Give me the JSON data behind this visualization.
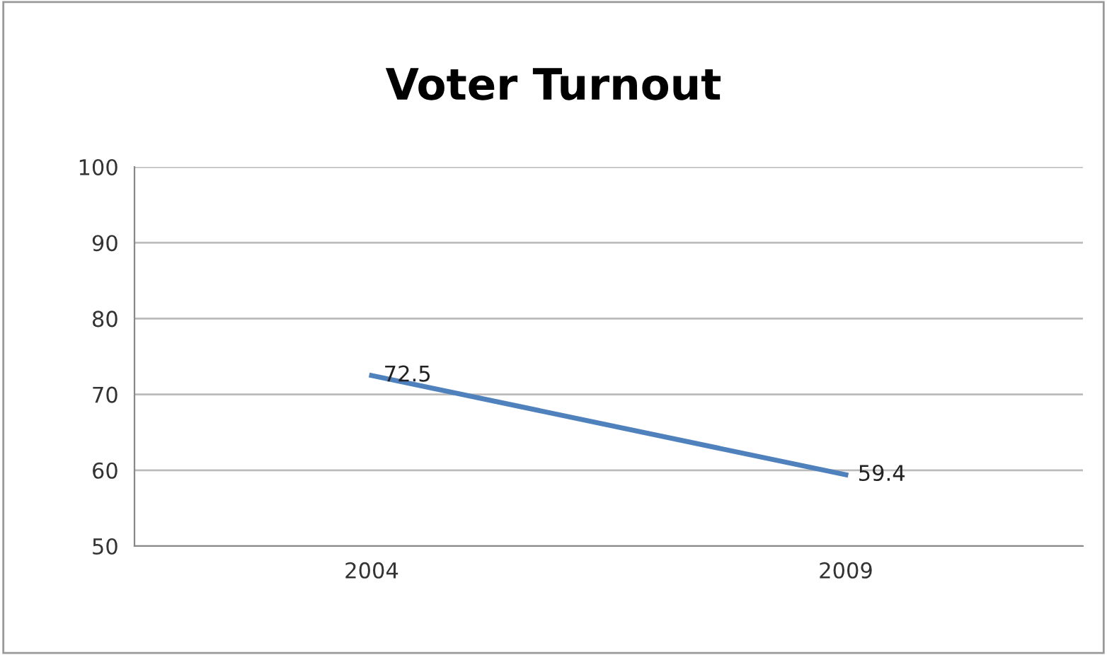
{
  "chart_data": {
    "type": "line",
    "title": "Voter Turnout",
    "categories": [
      "2004",
      "2009"
    ],
    "series": [
      {
        "color": "#4f81bd",
        "values": [
          72.5,
          59.4
        ]
      }
    ],
    "ylim": [
      50,
      100
    ],
    "yticks": [
      50,
      60,
      70,
      80,
      90,
      100
    ],
    "grid": "y",
    "data_labels": true,
    "marker": "none",
    "line_style": "solid",
    "legend": false
  }
}
